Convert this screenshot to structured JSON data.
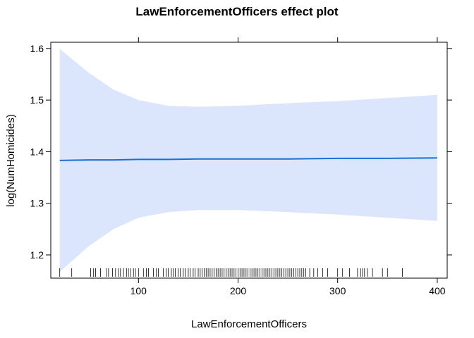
{
  "chart_data": {
    "type": "line",
    "title": "LawEnforcementOfficers effect plot",
    "xlabel": "LawEnforcementOfficers",
    "ylabel": "log(NumHomicides)",
    "xlim": [
      12,
      410
    ],
    "ylim": [
      1.155,
      1.612
    ],
    "x_ticks": [
      100,
      200,
      300,
      400
    ],
    "y_ticks": [
      1.2,
      1.3,
      1.4,
      1.5,
      1.6
    ],
    "x_tick_labels": [
      "100",
      "200",
      "300",
      "400"
    ],
    "y_tick_labels": [
      "1.2",
      "1.3",
      "1.4",
      "1.5",
      "1.6"
    ],
    "grid": false,
    "colors": {
      "line": "#1a6fd1",
      "band": "#dbe6fd",
      "rug": "#000000"
    },
    "series": [
      {
        "x": [
          21,
          50,
          75,
          100,
          130,
          160,
          200,
          250,
          300,
          350,
          400
        ],
        "fit": [
          1.383,
          1.384,
          1.384,
          1.385,
          1.385,
          1.386,
          1.386,
          1.386,
          1.387,
          1.387,
          1.388
        ],
        "upper": [
          1.599,
          1.553,
          1.52,
          1.5,
          1.489,
          1.487,
          1.489,
          1.494,
          1.498,
          1.504,
          1.51
        ],
        "lower": [
          1.167,
          1.217,
          1.25,
          1.272,
          1.283,
          1.287,
          1.287,
          1.283,
          1.278,
          1.272,
          1.266
        ]
      }
    ],
    "rug": [
      21,
      33,
      52,
      55,
      57,
      62,
      68,
      70,
      74,
      77,
      80,
      82,
      85,
      88,
      90,
      92,
      95,
      97,
      100,
      105,
      108,
      110,
      115,
      118,
      120,
      125,
      128,
      130,
      133,
      135,
      137,
      140,
      142,
      145,
      147,
      150,
      152,
      155,
      157,
      160,
      162,
      164,
      166,
      168,
      170,
      172,
      174,
      176,
      178,
      180,
      182,
      184,
      186,
      188,
      190,
      192,
      194,
      196,
      198,
      200,
      202,
      204,
      206,
      208,
      210,
      212,
      214,
      216,
      218,
      220,
      222,
      224,
      226,
      228,
      230,
      232,
      234,
      236,
      238,
      240,
      242,
      244,
      246,
      248,
      250,
      252,
      254,
      256,
      258,
      260,
      262,
      264,
      266,
      268,
      272,
      276,
      280,
      285,
      290,
      300,
      305,
      312,
      320,
      323,
      325,
      327,
      330,
      335,
      345,
      350,
      365
    ]
  }
}
